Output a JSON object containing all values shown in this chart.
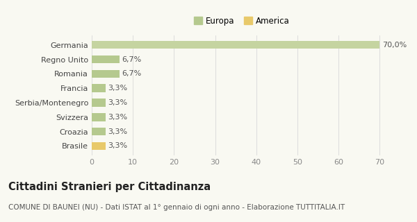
{
  "categories": [
    "Brasile",
    "Croazia",
    "Svizzera",
    "Serbia/Montenegro",
    "Francia",
    "Romania",
    "Regno Unito",
    "Germania"
  ],
  "values": [
    3.3,
    3.3,
    3.3,
    3.3,
    3.3,
    6.7,
    6.7,
    70.0
  ],
  "labels": [
    "3,3%",
    "3,3%",
    "3,3%",
    "3,3%",
    "3,3%",
    "6,7%",
    "6,7%",
    "70,0%"
  ],
  "colors": [
    "#e8c96a",
    "#b5c98e",
    "#b5c98e",
    "#b5c98e",
    "#b5c98e",
    "#b5c98e",
    "#b5c98e",
    "#c5d4a0"
  ],
  "legend_labels": [
    "Europa",
    "America"
  ],
  "legend_colors": [
    "#b5c98e",
    "#e8c96a"
  ],
  "title": "Cittadini Stranieri per Cittadinanza",
  "subtitle": "COMUNE DI BAUNEI (NU) - Dati ISTAT al 1° gennaio di ogni anno - Elaborazione TUTTITALIA.IT",
  "xlim": [
    0,
    73
  ],
  "xticks": [
    0,
    10,
    20,
    30,
    40,
    50,
    60,
    70
  ],
  "bg_color": "#f9f9f2",
  "bar_label_fontsize": 8,
  "title_fontsize": 10.5,
  "subtitle_fontsize": 7.5,
  "ytick_fontsize": 8,
  "xtick_fontsize": 8,
  "legend_fontsize": 8.5
}
